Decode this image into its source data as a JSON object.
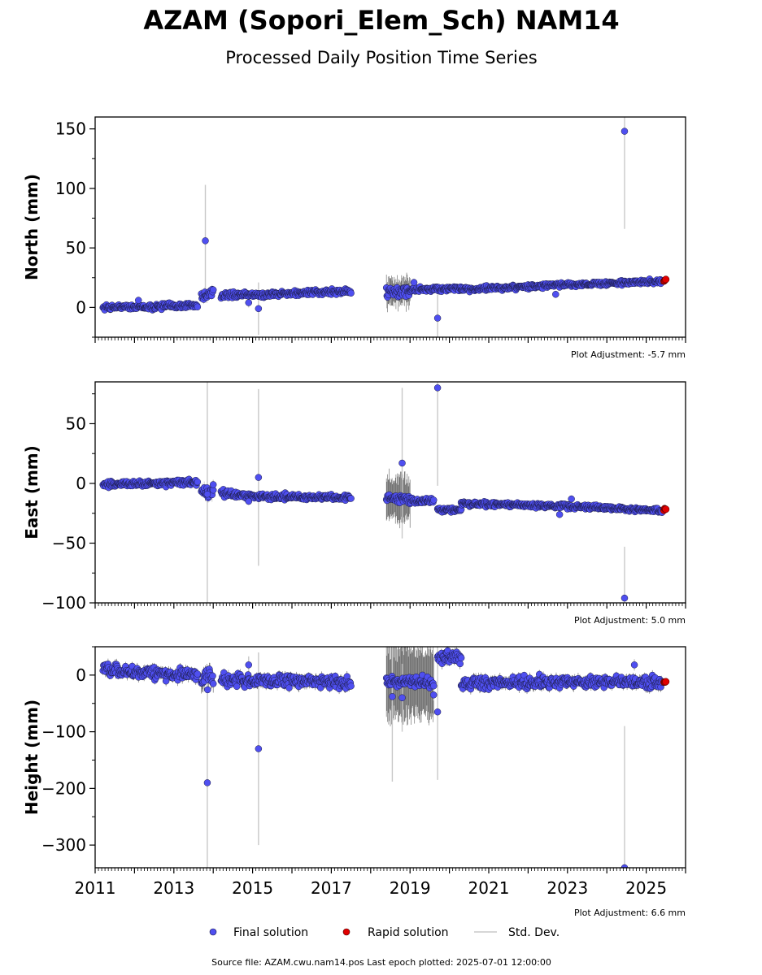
{
  "title": "AZAM (Sopori_Elem_Sch) NAM14",
  "subtitle": "Processed Daily Position Time Series",
  "footer": "Source file: AZAM.cwu.nam14.pos  Last epoch plotted: 2025-07-01 12:00:00",
  "legend": {
    "final_label": "Final solution",
    "rapid_label": "Rapid solution",
    "std_label": "Std. Dev."
  },
  "colors": {
    "final": "#4f4ff0",
    "final_edge": "#1a1a40",
    "rapid": "#e00000",
    "std": "#c8c8c8",
    "std_dark": "#606060"
  },
  "chart_data": [
    {
      "type": "scatter",
      "ylabel": "North (mm)",
      "adjustment": "Plot Adjustment: -5.7 mm",
      "xlim": [
        2011.0,
        2026.0
      ],
      "ylim": [
        -25,
        160
      ],
      "yticks": [
        0,
        50,
        100,
        150
      ],
      "yticklabels": [
        "0",
        "50",
        "100",
        "150"
      ],
      "xticklabels_shown": false,
      "segments": [
        {
          "x0": 2011.2,
          "x1": 2012.2,
          "y0": 0,
          "y1": 1,
          "noise": 1.5,
          "sd": 2
        },
        {
          "x0": 2012.2,
          "x1": 2013.6,
          "y0": 0,
          "y1": 2,
          "noise": 1.6,
          "sd": 2
        },
        {
          "x0": 2013.7,
          "x1": 2014.0,
          "y0": 8,
          "y1": 13,
          "noise": 3,
          "sd": 4
        },
        {
          "x0": 2014.2,
          "x1": 2015.5,
          "y0": 10,
          "y1": 11,
          "noise": 1.5,
          "sd": 2
        },
        {
          "x0": 2015.5,
          "x1": 2017.5,
          "y0": 11,
          "y1": 14,
          "noise": 1.5,
          "sd": 2
        },
        {
          "x0": 2018.4,
          "x1": 2019.0,
          "y0": 12,
          "y1": 14,
          "noise": 3,
          "sd": 10
        },
        {
          "x0": 2019.0,
          "x1": 2020.3,
          "y0": 15,
          "y1": 16,
          "noise": 1.5,
          "sd": 2
        },
        {
          "x0": 2020.3,
          "x1": 2023.0,
          "y0": 15,
          "y1": 19,
          "noise": 1.3,
          "sd": 2
        },
        {
          "x0": 2023.0,
          "x1": 2025.4,
          "y0": 19,
          "y1": 22,
          "noise": 1.3,
          "sd": 2
        }
      ],
      "outliers": [
        {
          "x": 2012.1,
          "y": 6,
          "sd": 3
        },
        {
          "x": 2013.8,
          "y": 56,
          "sd": 47
        },
        {
          "x": 2014.9,
          "y": 4,
          "sd": 4
        },
        {
          "x": 2015.15,
          "y": -1,
          "sd": 22
        },
        {
          "x": 2019.1,
          "y": 21,
          "sd": 3
        },
        {
          "x": 2019.7,
          "y": -9,
          "sd": 20
        },
        {
          "x": 2022.7,
          "y": 11,
          "sd": 3
        },
        {
          "x": 2024.45,
          "y": 148,
          "sd": 82
        }
      ],
      "rapid": {
        "x0": 2025.45,
        "x1": 2025.5,
        "y": 23
      }
    },
    {
      "type": "scatter",
      "ylabel": "East (mm)",
      "adjustment": "Plot Adjustment: 5.0 mm",
      "xlim": [
        2011.0,
        2026.0
      ],
      "ylim": [
        -100,
        85
      ],
      "yticks": [
        -100,
        -50,
        0,
        50
      ],
      "yticklabels": [
        "−100",
        "−50",
        "0",
        "50"
      ],
      "xticklabels_shown": false,
      "segments": [
        {
          "x0": 2011.2,
          "x1": 2013.6,
          "y0": -1,
          "y1": 1,
          "noise": 1.5,
          "sd": 2
        },
        {
          "x0": 2013.7,
          "x1": 2014.0,
          "y0": -7,
          "y1": -9,
          "noise": 3,
          "sd": 5
        },
        {
          "x0": 2014.2,
          "x1": 2015.2,
          "y0": -8,
          "y1": -11,
          "noise": 1.8,
          "sd": 2
        },
        {
          "x0": 2015.2,
          "x1": 2017.5,
          "y0": -11,
          "y1": -12,
          "noise": 1.6,
          "sd": 2
        },
        {
          "x0": 2018.4,
          "x1": 2019.0,
          "y0": -12,
          "y1": -14,
          "noise": 2.5,
          "sd": 18
        },
        {
          "x0": 2019.0,
          "x1": 2019.6,
          "y0": -14,
          "y1": -15,
          "noise": 1.5,
          "sd": 2
        },
        {
          "x0": 2019.7,
          "x1": 2020.3,
          "y0": -22,
          "y1": -22,
          "noise": 1.3,
          "sd": 2
        },
        {
          "x0": 2020.3,
          "x1": 2023.0,
          "y0": -17,
          "y1": -19,
          "noise": 1.3,
          "sd": 2
        },
        {
          "x0": 2023.0,
          "x1": 2025.4,
          "y0": -19,
          "y1": -23,
          "noise": 1.3,
          "sd": 2
        }
      ],
      "outliers": [
        {
          "x": 2013.85,
          "y": -9,
          "sd": 95
        },
        {
          "x": 2014.0,
          "y": -1,
          "sd": 4
        },
        {
          "x": 2014.9,
          "y": -15,
          "sd": 3
        },
        {
          "x": 2015.15,
          "y": 5,
          "sd": 74
        },
        {
          "x": 2018.8,
          "y": 17,
          "sd": 63
        },
        {
          "x": 2019.7,
          "y": 80,
          "sd": 82
        },
        {
          "x": 2022.8,
          "y": -26,
          "sd": 3
        },
        {
          "x": 2023.1,
          "y": -13,
          "sd": 3
        },
        {
          "x": 2024.45,
          "y": -96,
          "sd": 43
        }
      ],
      "rapid": {
        "x0": 2025.45,
        "x1": 2025.5,
        "y": -22
      }
    },
    {
      "type": "scatter",
      "ylabel": "Height (mm)",
      "adjustment": "Plot Adjustment: 6.6 mm",
      "xlim": [
        2011.0,
        2026.0
      ],
      "ylim": [
        -340,
        50
      ],
      "yticks": [
        -300,
        -200,
        -100,
        0
      ],
      "yticklabels": [
        "−300",
        "−200",
        "−100",
        "0"
      ],
      "xticks": [
        2011,
        2013,
        2015,
        2017,
        2019,
        2021,
        2023,
        2025
      ],
      "xticklabels": [
        "2011",
        "2013",
        "2015",
        "2017",
        "2019",
        "2021",
        "2023",
        "2025"
      ],
      "xticklabels_shown": true,
      "segments": [
        {
          "x0": 2011.2,
          "x1": 2013.6,
          "y0": 8,
          "y1": 0,
          "noise": 7,
          "sd": 8
        },
        {
          "x0": 2013.7,
          "x1": 2014.0,
          "y0": -5,
          "y1": -8,
          "noise": 10,
          "sd": 15
        },
        {
          "x0": 2014.2,
          "x1": 2015.5,
          "y0": -8,
          "y1": -10,
          "noise": 7,
          "sd": 8
        },
        {
          "x0": 2015.5,
          "x1": 2017.5,
          "y0": -9,
          "y1": -12,
          "noise": 7,
          "sd": 8
        },
        {
          "x0": 2018.4,
          "x1": 2019.6,
          "y0": -12,
          "y1": -15,
          "noise": 7,
          "sd": 60
        },
        {
          "x0": 2019.7,
          "x1": 2020.3,
          "y0": 30,
          "y1": 33,
          "noise": 7,
          "sd": 8
        },
        {
          "x0": 2020.3,
          "x1": 2023.0,
          "y0": -15,
          "y1": -12,
          "noise": 7,
          "sd": 8
        },
        {
          "x0": 2023.0,
          "x1": 2025.4,
          "y0": -12,
          "y1": -13,
          "noise": 7,
          "sd": 8
        }
      ],
      "outliers": [
        {
          "x": 2013.85,
          "y": -190,
          "sd": 160
        },
        {
          "x": 2014.9,
          "y": 18,
          "sd": 15
        },
        {
          "x": 2015.15,
          "y": -130,
          "sd": 170
        },
        {
          "x": 2018.55,
          "y": -38,
          "sd": 150
        },
        {
          "x": 2018.8,
          "y": -40,
          "sd": 60
        },
        {
          "x": 2019.6,
          "y": -35,
          "sd": 10
        },
        {
          "x": 2019.7,
          "y": -65,
          "sd": 120
        },
        {
          "x": 2024.45,
          "y": -340,
          "sd": 250
        },
        {
          "x": 2024.7,
          "y": 18,
          "sd": 10
        }
      ],
      "rapid": {
        "x0": 2025.45,
        "x1": 2025.5,
        "y": -12
      }
    }
  ]
}
